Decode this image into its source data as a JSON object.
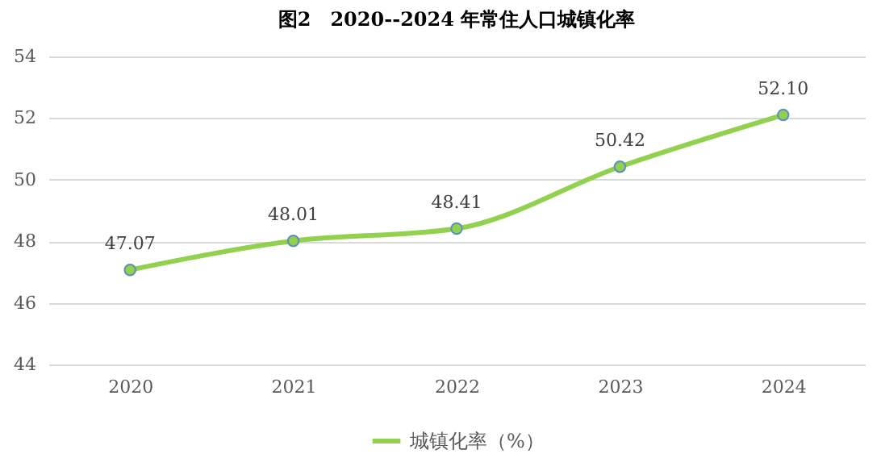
{
  "chart_data": {
    "type": "line",
    "title": "图2　2020--2024 年常住人口城镇化率",
    "categories": [
      "2020",
      "2021",
      "2022",
      "2023",
      "2024"
    ],
    "series": [
      {
        "name": "城镇化率（%）",
        "color": "#92d050",
        "values": [
          47.07,
          48.01,
          48.41,
          50.42,
          52.1
        ],
        "value_labels": [
          "47.07",
          "48.01",
          "48.41",
          "50.42",
          "52.10"
        ]
      }
    ],
    "ylim": [
      44,
      54
    ],
    "yticks": [
      44,
      46,
      48,
      50,
      52,
      54
    ],
    "grid": "y",
    "legend": "bottom",
    "marker": "circle",
    "line_style": "solid"
  }
}
